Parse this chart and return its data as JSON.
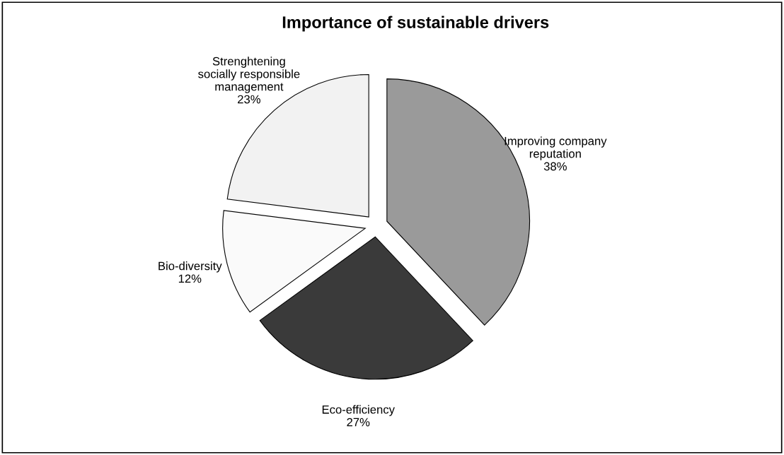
{
  "chart_data": {
    "type": "pie",
    "title": "Importance of sustainable drivers",
    "categories": [
      "Improving company\nreputation",
      "Eco-efficiency",
      "Bio-diversity",
      "Strenghtening\nsocially responsible\nmanagement"
    ],
    "values": [
      38,
      27,
      12,
      23
    ],
    "value_labels": [
      "38%",
      "27%",
      "12%",
      "23%"
    ],
    "colors": [
      "#9a9a9a",
      "#3a3a3a",
      "#fafafa",
      "#f2f2f2"
    ],
    "legend": false
  }
}
